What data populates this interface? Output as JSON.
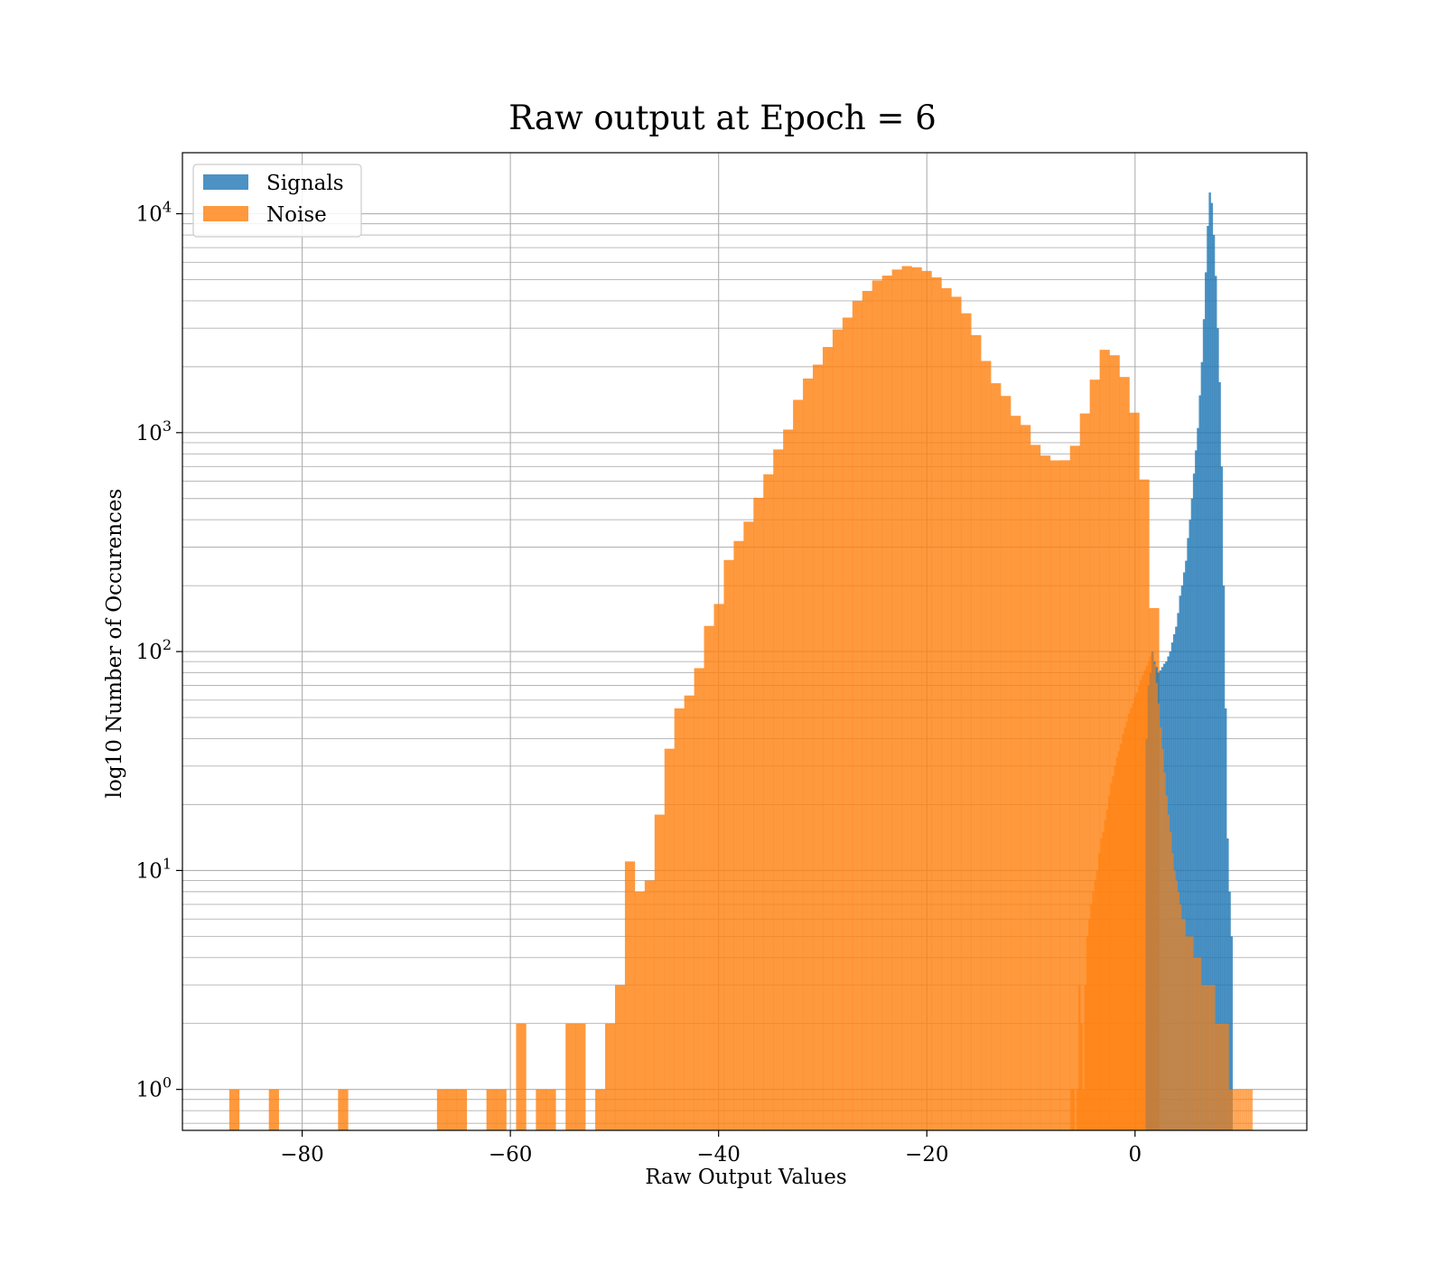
{
  "chart_data": {
    "type": "bar",
    "subtype": "overlaid-histogram",
    "title": "Raw output at Epoch = 6",
    "xlabel": "Raw Output Values",
    "ylabel": "log10 Number of Occurences",
    "yscale": "log",
    "xlim": [
      -91.5,
      16.5
    ],
    "ylim": [
      0.65,
      19000
    ],
    "grid": true,
    "legend_position": "top-left",
    "x_ticks": [
      {
        "value": -80,
        "label": "−80"
      },
      {
        "value": -60,
        "label": "−60"
      },
      {
        "value": -40,
        "label": "−40"
      },
      {
        "value": -20,
        "label": "−20"
      },
      {
        "value": 0,
        "label": "0"
      }
    ],
    "y_ticks": [
      {
        "value": 1,
        "base": "10",
        "exp": "0"
      },
      {
        "value": 10,
        "base": "10",
        "exp": "1"
      },
      {
        "value": 100,
        "base": "10",
        "exp": "2"
      },
      {
        "value": 1000,
        "base": "10",
        "exp": "3"
      },
      {
        "value": 10000,
        "base": "10",
        "exp": "4"
      }
    ],
    "series": [
      {
        "name": "Noise",
        "color": "#ff7f0e",
        "opacity": 0.8,
        "bin_start": -87.0,
        "bin_width": 0.95,
        "counts": [
          1,
          0,
          0,
          0,
          1,
          0,
          0,
          0,
          0,
          0,
          0,
          1,
          0,
          0,
          0,
          0,
          0,
          0,
          0,
          0,
          0,
          1,
          1,
          1,
          0,
          0,
          1,
          1,
          0,
          2,
          0,
          1,
          1,
          0,
          2,
          2,
          0,
          1,
          2,
          3,
          11,
          8,
          9,
          18,
          36,
          55,
          63,
          84,
          131,
          165,
          262,
          320,
          392,
          504,
          645,
          838,
          1033,
          1412,
          1767,
          2045,
          2462,
          2960,
          3355,
          3997,
          4439,
          4957,
          5216,
          5560,
          5765,
          5694,
          5479,
          5119,
          4571,
          4176,
          3510,
          2790,
          2126,
          1682,
          1471,
          1194,
          1084,
          879,
          786,
          747,
          748,
          871,
          1224,
          1746,
          2390,
          2257,
          1796,
          1234,
          611,
          158,
          0
        ],
        "overlay_bin_start": -6.2,
        "overlay_bin_width": 0.19,
        "overlay_counts": [
          1,
          1,
          0,
          1,
          3,
          2,
          1,
          3,
          5,
          6,
          7,
          8,
          9,
          10,
          12,
          14,
          15,
          17,
          19,
          22,
          25,
          27,
          30,
          33,
          35,
          38,
          42,
          45,
          48,
          52,
          55,
          58,
          62,
          65,
          70,
          74,
          78,
          82,
          86,
          90,
          95,
          100,
          88,
          72,
          58,
          45,
          36,
          28,
          22,
          18,
          15,
          12,
          10,
          9,
          8,
          7,
          6,
          6,
          5,
          5,
          5,
          5,
          4,
          4,
          4,
          4,
          3,
          3,
          3,
          3,
          3,
          3,
          3,
          2,
          2,
          2,
          2,
          2,
          2,
          2,
          1,
          1,
          1,
          1,
          1,
          1,
          1,
          1,
          1,
          1,
          1,
          1
        ]
      },
      {
        "name": "Signals",
        "color": "#1f77b4",
        "opacity": 0.8,
        "bin_start": 1.0,
        "bin_width": 0.19,
        "counts": [
          40,
          70,
          80,
          100,
          90,
          85,
          80,
          82,
          85,
          88,
          90,
          95,
          100,
          110,
          120,
          130,
          150,
          180,
          200,
          230,
          260,
          330,
          400,
          500,
          650,
          830,
          1050,
          1480,
          2100,
          3300,
          5400,
          8800,
          12500,
          11200,
          8000,
          5200,
          3000,
          1700,
          700,
          200,
          55,
          14,
          8,
          5
        ]
      }
    ]
  }
}
